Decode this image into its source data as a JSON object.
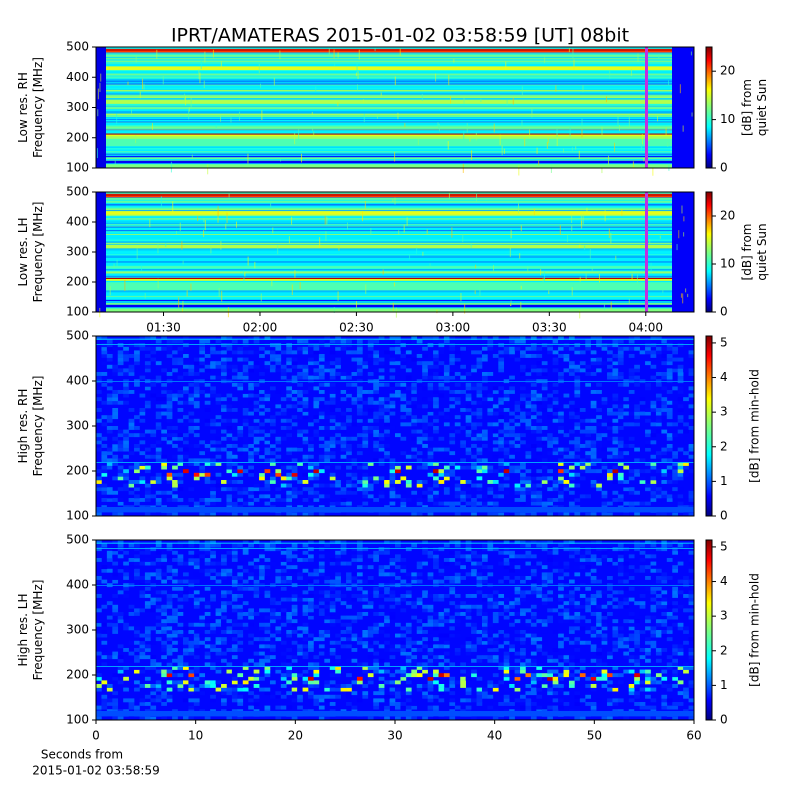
{
  "chart_data": [
    {
      "type": "spectrogram",
      "title": "IPRT/AMATERAS 2015-01-02 03:58:59 [UT]   08bit",
      "ylabel": [
        "Low res. RH",
        "Frequency [MHz]"
      ],
      "ylim": [
        100,
        500
      ],
      "yticks": [
        100,
        200,
        300,
        400,
        500
      ],
      "xlim": [
        "01:09",
        "04:15"
      ],
      "colormap": "jet",
      "resolution": "low",
      "colorbar": {
        "label": [
          "[dB] from",
          "quiet Sun"
        ],
        "lim": [
          0,
          25
        ],
        "ticks": [
          0,
          10,
          20
        ]
      }
    },
    {
      "type": "spectrogram",
      "ylabel": [
        "Low res. LH",
        "Frequency [MHz]"
      ],
      "ylim": [
        100,
        500
      ],
      "yticks": [
        100,
        200,
        300,
        400,
        500
      ],
      "xlim": [
        "01:09",
        "04:15"
      ],
      "xticks": [
        "01:30",
        "02:00",
        "02:30",
        "03:00",
        "03:30",
        "04:00"
      ],
      "colormap": "jet",
      "resolution": "low",
      "colorbar": {
        "label": [
          "[dB] from",
          "quiet Sun"
        ],
        "lim": [
          0,
          25
        ],
        "ticks": [
          0,
          10,
          20
        ]
      }
    },
    {
      "type": "spectrogram",
      "ylabel": [
        "High res. RH",
        "Frequency [MHz]"
      ],
      "ylim": [
        100,
        500
      ],
      "yticks": [
        100,
        200,
        300,
        400,
        500
      ],
      "xlim": [
        0,
        60
      ],
      "colormap": "jet",
      "resolution": "high",
      "colorbar": {
        "label": [
          "[dB] from min-hold"
        ],
        "lim": [
          0,
          5.2
        ],
        "ticks": [
          0,
          1,
          2,
          3,
          4,
          5
        ]
      }
    },
    {
      "type": "spectrogram",
      "ylabel": [
        "High res. LH",
        "Frequency [MHz]"
      ],
      "ylim": [
        100,
        500
      ],
      "yticks": [
        100,
        200,
        300,
        400,
        500
      ],
      "xlim": [
        0,
        60
      ],
      "xticks": [
        0,
        10,
        20,
        30,
        40,
        50,
        60
      ],
      "xlabel": [
        "Seconds from",
        "2015-01-02 03:58:59"
      ],
      "colormap": "jet",
      "resolution": "high",
      "colorbar": {
        "label": [
          "[dB] from min-hold"
        ],
        "lim": [
          0,
          5.2
        ],
        "ticks": [
          0,
          1,
          2,
          3,
          4,
          5
        ]
      }
    }
  ]
}
